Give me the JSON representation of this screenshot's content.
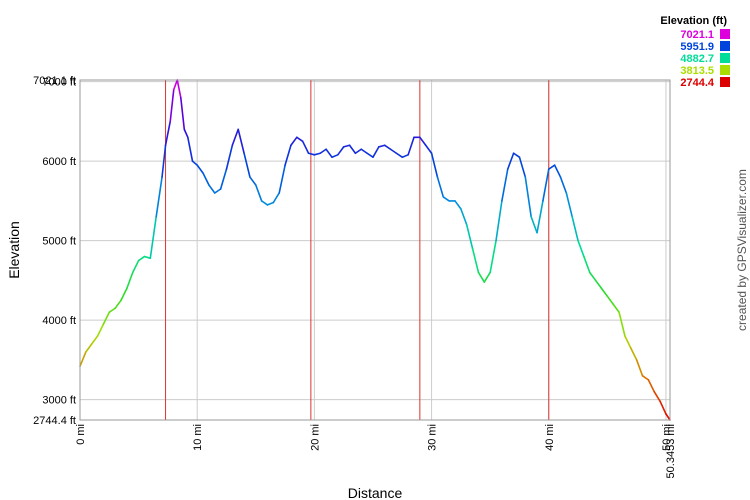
{
  "chart_data": {
    "type": "line",
    "xlabel": "Distance",
    "ylabel": "Elevation",
    "xlim": [
      0,
      50.3453
    ],
    "ylim": [
      2744.4,
      7021.1
    ],
    "x_ticks": [
      {
        "value": 0,
        "label": "0 mi"
      },
      {
        "value": 10,
        "label": "10 mi"
      },
      {
        "value": 20,
        "label": "20 mi"
      },
      {
        "value": 30,
        "label": "30 mi"
      },
      {
        "value": 40,
        "label": "40 mi"
      },
      {
        "value": 50,
        "label": "50 mi"
      },
      {
        "value": 50.3453,
        "label": "50.3453 mi"
      }
    ],
    "y_ticks": [
      {
        "value": 2744.4,
        "label": "2744.4 ft"
      },
      {
        "value": 3000,
        "label": "3000 ft"
      },
      {
        "value": 4000,
        "label": "4000 ft"
      },
      {
        "value": 5000,
        "label": "5000 ft"
      },
      {
        "value": 6000,
        "label": "6000 ft"
      },
      {
        "value": 7000,
        "label": "7000 ft"
      },
      {
        "value": 7021.1,
        "label": "7021.1 ft"
      }
    ],
    "grid": true,
    "markers_x": [
      7.3,
      19.7,
      29.0,
      40.0
    ],
    "legend": {
      "title": "Elevation (ft)",
      "placement": "top-right",
      "entries": [
        {
          "label": "7021.1",
          "color": "#dd00dd"
        },
        {
          "label": "5951.9",
          "color": "#0044dd"
        },
        {
          "label": "4882.7",
          "color": "#00dd99"
        },
        {
          "label": "3813.5",
          "color": "#aadd00"
        },
        {
          "label": "2744.4",
          "color": "#dd0000"
        }
      ]
    },
    "series": [
      {
        "x": [
          0,
          0.5,
          1,
          1.5,
          2,
          2.5,
          3,
          3.5,
          4,
          4.5,
          5,
          5.5,
          6,
          6.5,
          7,
          7.3,
          7.7,
          8,
          8.3,
          8.6,
          8.9,
          9.2,
          9.6,
          10,
          10.5,
          11,
          11.5,
          12,
          12.5,
          13,
          13.5,
          14,
          14.5,
          15,
          15.5,
          16,
          16.5,
          17,
          17.5,
          18,
          18.5,
          19,
          19.5,
          20,
          20.5,
          21,
          21.5,
          22,
          22.5,
          23,
          23.5,
          24,
          24.5,
          25,
          25.5,
          26,
          26.5,
          27,
          27.5,
          28,
          28.5,
          29,
          29.5,
          30,
          30.5,
          31,
          31.5,
          32,
          32.5,
          33,
          33.5,
          34,
          34.5,
          35,
          35.5,
          36,
          36.5,
          37,
          37.5,
          38,
          38.5,
          39,
          39.5,
          40,
          40.5,
          41,
          41.5,
          42,
          42.5,
          43,
          43.5,
          44,
          44.5,
          45,
          45.5,
          46,
          46.5,
          47,
          47.5,
          48,
          48.5,
          49,
          49.5,
          50,
          50.3453
        ],
        "y": [
          3420,
          3600,
          3700,
          3800,
          3950,
          4100,
          4150,
          4250,
          4400,
          4600,
          4750,
          4800,
          4780,
          5300,
          5800,
          6200,
          6500,
          6900,
          7021.1,
          6800,
          6400,
          6300,
          6000,
          5950,
          5850,
          5700,
          5600,
          5650,
          5900,
          6200,
          6400,
          6100,
          5800,
          5700,
          5500,
          5450,
          5480,
          5600,
          5950,
          6200,
          6300,
          6250,
          6100,
          6080,
          6100,
          6150,
          6050,
          6080,
          6180,
          6200,
          6100,
          6150,
          6100,
          6050,
          6180,
          6200,
          6150,
          6100,
          6050,
          6080,
          6300,
          6300,
          6200,
          6100,
          5800,
          5550,
          5500,
          5500,
          5400,
          5200,
          4900,
          4600,
          4480,
          4600,
          5000,
          5500,
          5900,
          6100,
          6050,
          5800,
          5300,
          5100,
          5500,
          5900,
          5950,
          5800,
          5600,
          5300,
          5000,
          4800,
          4600,
          4500,
          4400,
          4300,
          4200,
          4100,
          3800,
          3650,
          3500,
          3300,
          3250,
          3100,
          2980,
          2820,
          2744.4
        ]
      }
    ]
  },
  "credit": "created by GPSVisualizer.com"
}
